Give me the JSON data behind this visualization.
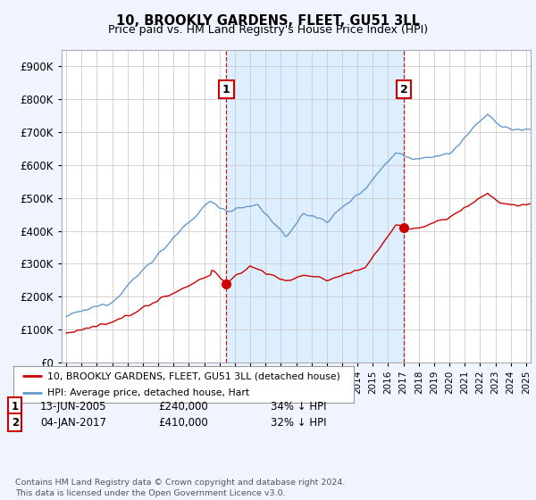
{
  "title": "10, BROOKLY GARDENS, FLEET, GU51 3LL",
  "subtitle": "Price paid vs. HM Land Registry's House Price Index (HPI)",
  "ylim": [
    0,
    950000
  ],
  "yticks": [
    0,
    100000,
    200000,
    300000,
    400000,
    500000,
    600000,
    700000,
    800000,
    900000
  ],
  "xlim_start": 1994.7,
  "xlim_end": 2025.3,
  "sale1_date": 2005.45,
  "sale1_price": 240000,
  "sale1_label": "1",
  "sale2_date": 2017.02,
  "sale2_price": 410000,
  "sale2_label": "2",
  "legend_entry1": "10, BROOKLY GARDENS, FLEET, GU51 3LL (detached house)",
  "legend_entry2": "HPI: Average price, detached house, Hart",
  "table_row1_num": "1",
  "table_row1_date": "13-JUN-2005",
  "table_row1_price": "£240,000",
  "table_row1_hpi": "34% ↓ HPI",
  "table_row2_num": "2",
  "table_row2_date": "04-JAN-2017",
  "table_row2_price": "£410,000",
  "table_row2_hpi": "32% ↓ HPI",
  "footer": "Contains HM Land Registry data © Crown copyright and database right 2024.\nThis data is licensed under the Open Government Licence v3.0.",
  "line_color_red": "#cc0000",
  "line_color_blue": "#6699cc",
  "shade_color": "#ddeeff",
  "background_color": "#ffffff",
  "plot_bg": "#ffffff",
  "grid_color": "#cccccc",
  "fig_bg": "#f0f4ff"
}
